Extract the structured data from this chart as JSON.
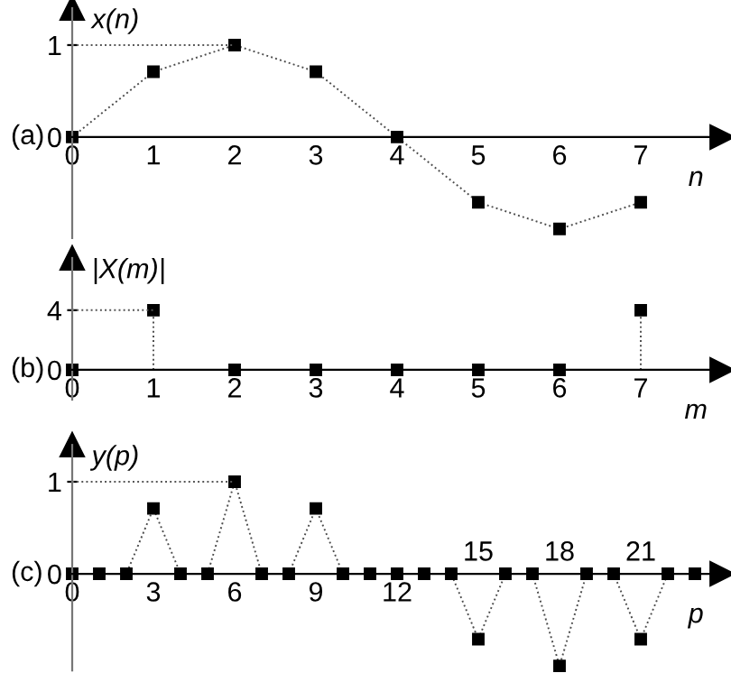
{
  "chart_data": [
    {
      "type": "line",
      "ylabel": "x(n)",
      "xlabel": "n",
      "annotations": [
        "(a)"
      ],
      "x": [
        0,
        1,
        2,
        3,
        4,
        5,
        6,
        7
      ],
      "series": [
        {
          "color": "#000000",
          "values": [
            0,
            0.71,
            1,
            0.71,
            0,
            -0.71,
            -1,
            -0.71
          ]
        }
      ],
      "xlim": [
        0,
        8
      ],
      "xticks": [
        0,
        1,
        2,
        3,
        4,
        5,
        6,
        7
      ],
      "ylim": [
        -1.1,
        1.4
      ],
      "yticks": [
        0,
        1
      ],
      "ref_lines": [
        {
          "axis": "y",
          "value": 1,
          "line_style": "dotted"
        }
      ],
      "marker": "square",
      "line_style": "dotted",
      "grid": false
    },
    {
      "type": "lollipop",
      "ylabel": "|X(m)|",
      "xlabel": "m",
      "annotations": [
        "(b)"
      ],
      "x": [
        0,
        1,
        2,
        3,
        4,
        5,
        6,
        7
      ],
      "series": [
        {
          "color": "#000000",
          "values": [
            0,
            4,
            0,
            0,
            0,
            0,
            0,
            4
          ]
        }
      ],
      "xlim": [
        0,
        8
      ],
      "xticks": [
        0,
        1,
        2,
        3,
        4,
        5,
        6,
        7
      ],
      "ylim": [
        -2,
        7.5
      ],
      "yticks": [
        0,
        4
      ],
      "ref_lines": [
        {
          "axis": "y",
          "value": 4,
          "line_style": "dotted"
        }
      ],
      "marker": "square",
      "line_style": "dotted",
      "grid": false
    },
    {
      "type": "line",
      "ylabel": "y(p)",
      "xlabel": "p",
      "annotations": [
        "(c)"
      ],
      "x": [
        0,
        1,
        2,
        3,
        4,
        5,
        6,
        7,
        8,
        9,
        10,
        11,
        12,
        13,
        14,
        15,
        16,
        17,
        18,
        19,
        20,
        21,
        22,
        23
      ],
      "series": [
        {
          "color": "#000000",
          "values": [
            0,
            0,
            0,
            0.71,
            0,
            0,
            1,
            0,
            0,
            0.71,
            0,
            0,
            0,
            0,
            0,
            -0.71,
            0,
            0,
            -1,
            0,
            0,
            -0.71,
            0,
            0
          ]
        }
      ],
      "xlim": [
        0,
        24
      ],
      "xticks": [
        0,
        3,
        6,
        9,
        12
      ],
      "x2lim": [
        0,
        24
      ],
      "x2ticks": [
        15,
        18,
        21
      ],
      "ylim": [
        -1.05,
        1.4
      ],
      "yticks": [
        0,
        1
      ],
      "ref_lines": [
        {
          "axis": "y",
          "value": 1,
          "line_style": "dotted"
        }
      ],
      "marker": "square",
      "line_style": "dotted",
      "grid": false
    }
  ]
}
